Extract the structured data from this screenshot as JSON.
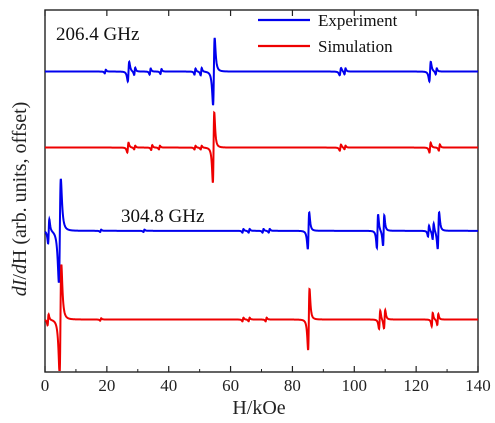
{
  "chart_data": {
    "type": "line",
    "xlabel": "H/kOe",
    "ylabel_parts": [
      "dI",
      "/",
      "d",
      "H (arb. units, offset)"
    ],
    "xlim": [
      0,
      140
    ],
    "xticks": [
      0,
      20,
      40,
      60,
      80,
      100,
      120,
      140
    ],
    "xtick_labels": [
      "0",
      "20",
      "40",
      "60",
      "80",
      "100",
      "120",
      "140"
    ],
    "legend": [
      {
        "name": "Experiment",
        "color": "#0000ee"
      },
      {
        "name": "Simulation",
        "color": "#ee0000"
      }
    ],
    "legend_position": "top-right",
    "panels": [
      {
        "frequency_label": "206.4 GHz",
        "series": [
          {
            "name": "Experiment",
            "color": "#0000ee",
            "offset": 0.83,
            "features": [
              {
                "x": 19.5,
                "amp": 0.006,
                "w": 0.3
              },
              {
                "x": 27.0,
                "amp": 0.032,
                "w": 0.4
              },
              {
                "x": 29.0,
                "amp": 0.012,
                "w": 0.3
              },
              {
                "x": 34.0,
                "amp": 0.01,
                "w": 0.3
              },
              {
                "x": 37.5,
                "amp": 0.008,
                "w": 0.3
              },
              {
                "x": 48.5,
                "amp": 0.01,
                "w": 0.3
              },
              {
                "x": 50.5,
                "amp": 0.012,
                "w": 0.3
              },
              {
                "x": 54.6,
                "amp": 0.11,
                "w": 0.45
              },
              {
                "x": 95.5,
                "amp": 0.012,
                "w": 0.4
              },
              {
                "x": 97.0,
                "amp": 0.01,
                "w": 0.3
              },
              {
                "x": 124.5,
                "amp": 0.032,
                "w": 0.4
              },
              {
                "x": 126.5,
                "amp": 0.01,
                "w": 0.3
              }
            ]
          },
          {
            "name": "Simulation",
            "color": "#ee0000",
            "offset": 0.62,
            "features": [
              {
                "x": 26.8,
                "amp": 0.016,
                "w": 0.35
              },
              {
                "x": 29.0,
                "amp": 0.006,
                "w": 0.3
              },
              {
                "x": 34.5,
                "amp": 0.008,
                "w": 0.3
              },
              {
                "x": 37.0,
                "amp": 0.006,
                "w": 0.3
              },
              {
                "x": 48.5,
                "amp": 0.006,
                "w": 0.3
              },
              {
                "x": 50.5,
                "amp": 0.006,
                "w": 0.3
              },
              {
                "x": 54.5,
                "amp": 0.115,
                "w": 0.4
              },
              {
                "x": 95.5,
                "amp": 0.01,
                "w": 0.35
              },
              {
                "x": 97.0,
                "amp": 0.006,
                "w": 0.3
              },
              {
                "x": 124.5,
                "amp": 0.016,
                "w": 0.35
              },
              {
                "x": 127.5,
                "amp": 0.01,
                "w": 0.3
              }
            ]
          }
        ]
      },
      {
        "frequency_label": "304.8 GHz",
        "series": [
          {
            "name": "Experiment",
            "color": "#0000ee",
            "offset": 0.39,
            "features": [
              {
                "x": 1.2,
                "amp": 0.04,
                "w": 0.35
              },
              {
                "x": 4.8,
                "amp": 0.17,
                "w": 0.55
              },
              {
                "x": 18.0,
                "amp": 0.004,
                "w": 0.3
              },
              {
                "x": 32.0,
                "amp": 0.004,
                "w": 0.3
              },
              {
                "x": 64.0,
                "amp": 0.006,
                "w": 0.3
              },
              {
                "x": 66.0,
                "amp": 0.006,
                "w": 0.3
              },
              {
                "x": 70.5,
                "amp": 0.006,
                "w": 0.3
              },
              {
                "x": 72.5,
                "amp": 0.006,
                "w": 0.3
              },
              {
                "x": 85.2,
                "amp": 0.06,
                "w": 0.4
              },
              {
                "x": 107.5,
                "amp": 0.055,
                "w": 0.35
              },
              {
                "x": 109.5,
                "amp": 0.05,
                "w": 0.35
              },
              {
                "x": 124.0,
                "amp": 0.018,
                "w": 0.3
              },
              {
                "x": 125.5,
                "amp": 0.026,
                "w": 0.3
              },
              {
                "x": 127.2,
                "amp": 0.06,
                "w": 0.4
              }
            ]
          },
          {
            "name": "Simulation",
            "color": "#ee0000",
            "offset": 0.145,
            "features": [
              {
                "x": 1.0,
                "amp": 0.018,
                "w": 0.3
              },
              {
                "x": 5.0,
                "amp": 0.18,
                "w": 0.5
              },
              {
                "x": 18.0,
                "amp": 0.004,
                "w": 0.3
              },
              {
                "x": 64.0,
                "amp": 0.006,
                "w": 0.3
              },
              {
                "x": 66.0,
                "amp": 0.006,
                "w": 0.3
              },
              {
                "x": 71.5,
                "amp": 0.006,
                "w": 0.3
              },
              {
                "x": 85.3,
                "amp": 0.1,
                "w": 0.4
              },
              {
                "x": 108.2,
                "amp": 0.03,
                "w": 0.35
              },
              {
                "x": 109.8,
                "amp": 0.03,
                "w": 0.35
              },
              {
                "x": 125.2,
                "amp": 0.022,
                "w": 0.3
              },
              {
                "x": 127.0,
                "amp": 0.018,
                "w": 0.3
              }
            ]
          }
        ]
      }
    ]
  }
}
